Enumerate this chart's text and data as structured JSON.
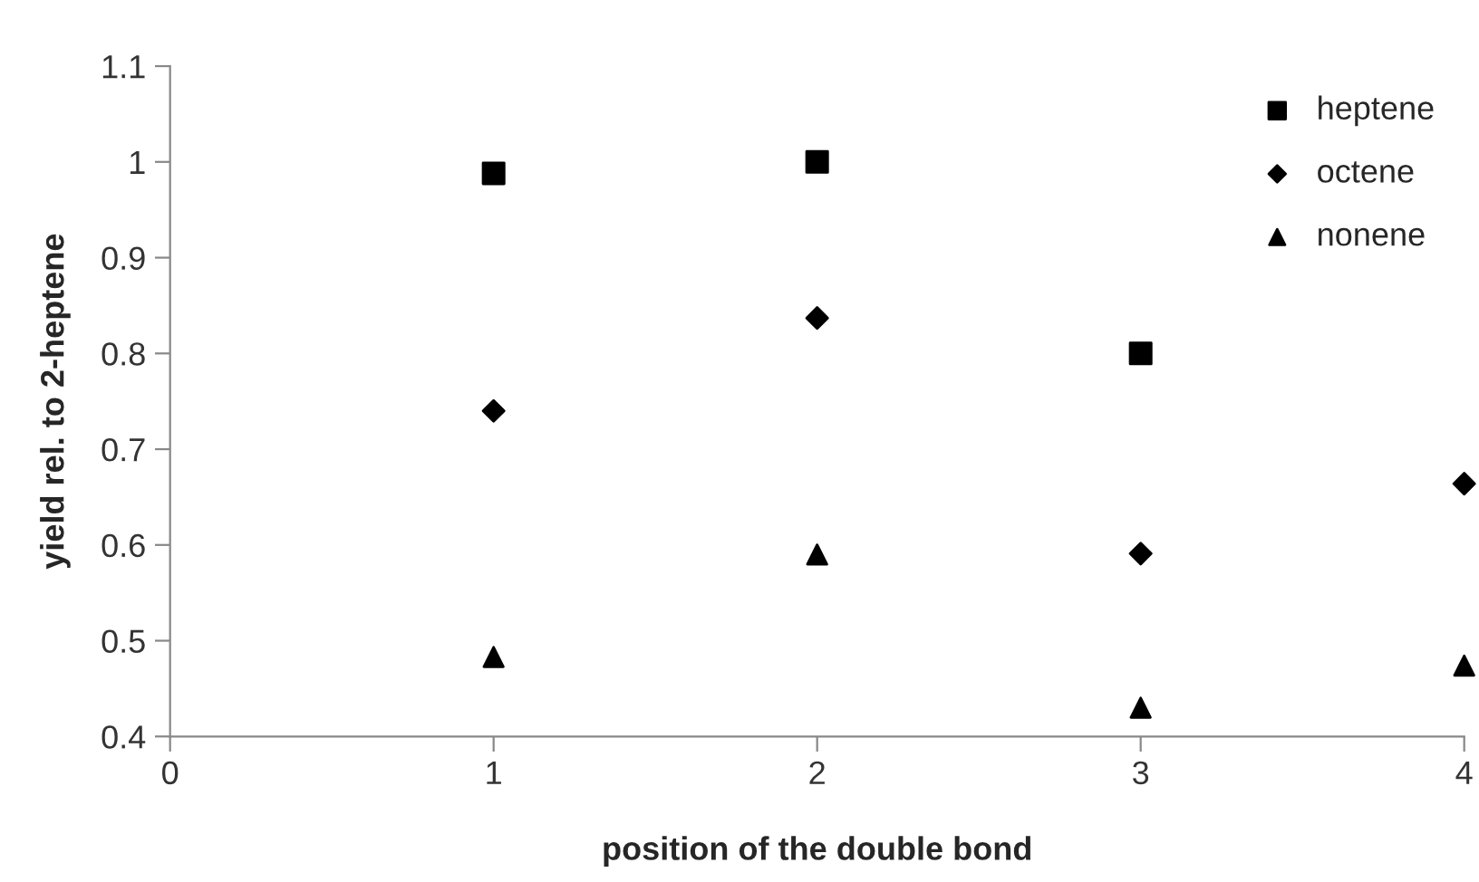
{
  "chart_data": {
    "type": "scatter",
    "xlabel": "position of the double bond",
    "ylabel": "yield rel. to 2-heptene",
    "x": [
      1,
      2,
      3,
      4
    ],
    "series": [
      {
        "name": "heptene",
        "color": "#000000",
        "marker": "square",
        "values": [
          0.988,
          1.0,
          0.8,
          null
        ]
      },
      {
        "name": "octene",
        "color": "#000000",
        "marker": "diamond",
        "values": [
          0.74,
          0.837,
          0.591,
          0.664
        ]
      },
      {
        "name": "nonene",
        "color": "#000000",
        "marker": "triangle",
        "values": [
          0.483,
          0.59,
          0.43,
          0.474
        ]
      }
    ],
    "xlim": [
      0,
      4
    ],
    "xticks": [
      0,
      1,
      2,
      3,
      4
    ],
    "ylim": [
      0.4,
      1.1
    ],
    "yticks": [
      0.4,
      0.5,
      0.6,
      0.7,
      0.8,
      0.9,
      1,
      1.1
    ],
    "grid": false,
    "legend": "top right"
  }
}
